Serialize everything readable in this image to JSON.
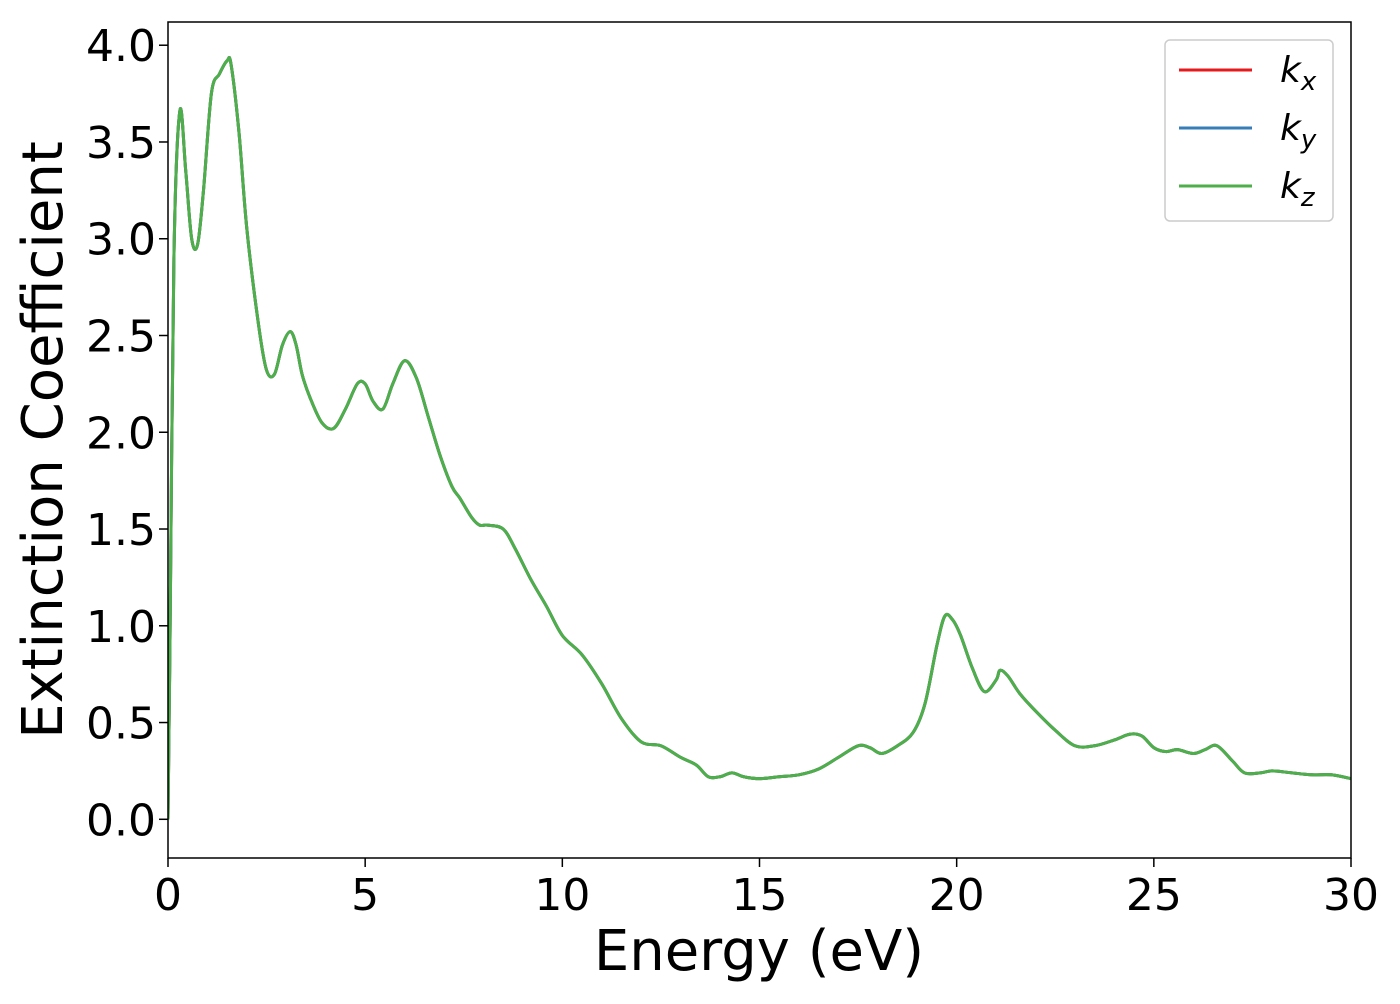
{
  "chart_data": {
    "type": "line",
    "title": "",
    "xlabel": "Energy (eV)",
    "ylabel": "Extinction Coefficient",
    "xlim": [
      0,
      30
    ],
    "ylim": [
      -0.2,
      4.12
    ],
    "xticks": [
      0,
      5,
      10,
      15,
      20,
      25,
      30
    ],
    "xtick_labels": [
      "0",
      "5",
      "10",
      "15",
      "20",
      "25",
      "30"
    ],
    "yticks": [
      0.0,
      0.5,
      1.0,
      1.5,
      2.0,
      2.5,
      3.0,
      3.5,
      4.0
    ],
    "ytick_labels": [
      "0.0",
      "0.5",
      "1.0",
      "1.5",
      "2.0",
      "2.5",
      "3.0",
      "3.5",
      "4.0"
    ],
    "grid": false,
    "legend_position": "top-right",
    "series": [
      {
        "name": "k",
        "subscript": "x",
        "color": "#e41a1c",
        "x": [
          0.0,
          0.05,
          0.15,
          0.3,
          0.45,
          0.6,
          0.75,
          0.9,
          1.1,
          1.3,
          1.5,
          1.6,
          1.8,
          2.0,
          2.3,
          2.5,
          2.7,
          2.9,
          3.1,
          3.25,
          3.4,
          3.6,
          3.9,
          4.2,
          4.5,
          4.8,
          5.0,
          5.2,
          5.45,
          5.7,
          6.0,
          6.3,
          6.6,
          6.9,
          7.2,
          7.4,
          7.7,
          7.9,
          8.1,
          8.5,
          8.8,
          9.2,
          9.6,
          10.0,
          10.5,
          11.0,
          11.5,
          12.0,
          12.5,
          13.0,
          13.4,
          13.7,
          14.0,
          14.3,
          14.6,
          15.0,
          15.5,
          16.0,
          16.5,
          17.0,
          17.5,
          17.8,
          18.1,
          18.5,
          18.9,
          19.2,
          19.5,
          19.7,
          19.9,
          20.1,
          20.4,
          20.7,
          21.0,
          21.1,
          21.3,
          21.6,
          22.0,
          22.5,
          23.0,
          23.5,
          24.0,
          24.4,
          24.7,
          25.0,
          25.3,
          25.6,
          26.0,
          26.3,
          26.6,
          27.0,
          27.3,
          27.7,
          28.0,
          28.5,
          29.0,
          29.5,
          30.0
        ],
        "y": [
          0.0,
          0.9,
          2.9,
          3.66,
          3.35,
          3.0,
          2.97,
          3.25,
          3.75,
          3.85,
          3.92,
          3.9,
          3.55,
          3.05,
          2.55,
          2.32,
          2.3,
          2.45,
          2.52,
          2.45,
          2.3,
          2.18,
          2.05,
          2.02,
          2.12,
          2.25,
          2.25,
          2.16,
          2.12,
          2.25,
          2.37,
          2.28,
          2.08,
          1.88,
          1.72,
          1.66,
          1.56,
          1.52,
          1.52,
          1.5,
          1.4,
          1.24,
          1.1,
          0.95,
          0.85,
          0.7,
          0.52,
          0.4,
          0.38,
          0.32,
          0.28,
          0.22,
          0.22,
          0.24,
          0.22,
          0.21,
          0.22,
          0.23,
          0.26,
          0.32,
          0.38,
          0.37,
          0.34,
          0.38,
          0.45,
          0.6,
          0.9,
          1.05,
          1.03,
          0.95,
          0.78,
          0.66,
          0.72,
          0.77,
          0.74,
          0.65,
          0.56,
          0.46,
          0.38,
          0.38,
          0.41,
          0.44,
          0.43,
          0.37,
          0.35,
          0.36,
          0.34,
          0.36,
          0.38,
          0.3,
          0.24,
          0.24,
          0.25,
          0.24,
          0.23,
          0.23,
          0.21
        ]
      },
      {
        "name": "k",
        "subscript": "y",
        "color": "#377eb8",
        "x": [
          0.0,
          0.05,
          0.15,
          0.3,
          0.45,
          0.6,
          0.75,
          0.9,
          1.1,
          1.3,
          1.5,
          1.6,
          1.8,
          2.0,
          2.3,
          2.5,
          2.7,
          2.9,
          3.1,
          3.25,
          3.4,
          3.6,
          3.9,
          4.2,
          4.5,
          4.8,
          5.0,
          5.2,
          5.45,
          5.7,
          6.0,
          6.3,
          6.6,
          6.9,
          7.2,
          7.4,
          7.7,
          7.9,
          8.1,
          8.5,
          8.8,
          9.2,
          9.6,
          10.0,
          10.5,
          11.0,
          11.5,
          12.0,
          12.5,
          13.0,
          13.4,
          13.7,
          14.0,
          14.3,
          14.6,
          15.0,
          15.5,
          16.0,
          16.5,
          17.0,
          17.5,
          17.8,
          18.1,
          18.5,
          18.9,
          19.2,
          19.5,
          19.7,
          19.9,
          20.1,
          20.4,
          20.7,
          21.0,
          21.1,
          21.3,
          21.6,
          22.0,
          22.5,
          23.0,
          23.5,
          24.0,
          24.4,
          24.7,
          25.0,
          25.3,
          25.6,
          26.0,
          26.3,
          26.6,
          27.0,
          27.3,
          27.7,
          28.0,
          28.5,
          29.0,
          29.5,
          30.0
        ],
        "y": [
          0.0,
          0.9,
          2.9,
          3.66,
          3.35,
          3.0,
          2.97,
          3.25,
          3.75,
          3.85,
          3.92,
          3.9,
          3.55,
          3.05,
          2.55,
          2.32,
          2.3,
          2.45,
          2.52,
          2.45,
          2.3,
          2.18,
          2.05,
          2.02,
          2.12,
          2.25,
          2.25,
          2.16,
          2.12,
          2.25,
          2.37,
          2.28,
          2.08,
          1.88,
          1.72,
          1.66,
          1.56,
          1.52,
          1.52,
          1.5,
          1.4,
          1.24,
          1.1,
          0.95,
          0.85,
          0.7,
          0.52,
          0.4,
          0.38,
          0.32,
          0.28,
          0.22,
          0.22,
          0.24,
          0.22,
          0.21,
          0.22,
          0.23,
          0.26,
          0.32,
          0.38,
          0.37,
          0.34,
          0.38,
          0.45,
          0.6,
          0.9,
          1.05,
          1.03,
          0.95,
          0.78,
          0.66,
          0.72,
          0.77,
          0.74,
          0.65,
          0.56,
          0.46,
          0.38,
          0.38,
          0.41,
          0.44,
          0.43,
          0.37,
          0.35,
          0.36,
          0.34,
          0.36,
          0.38,
          0.3,
          0.24,
          0.24,
          0.25,
          0.24,
          0.23,
          0.23,
          0.21
        ]
      },
      {
        "name": "k",
        "subscript": "z",
        "color": "#4daf4a",
        "x": [
          0.0,
          0.05,
          0.15,
          0.3,
          0.45,
          0.6,
          0.75,
          0.9,
          1.1,
          1.3,
          1.5,
          1.6,
          1.8,
          2.0,
          2.3,
          2.5,
          2.7,
          2.9,
          3.1,
          3.25,
          3.4,
          3.6,
          3.9,
          4.2,
          4.5,
          4.8,
          5.0,
          5.2,
          5.45,
          5.7,
          6.0,
          6.3,
          6.6,
          6.9,
          7.2,
          7.4,
          7.7,
          7.9,
          8.1,
          8.5,
          8.8,
          9.2,
          9.6,
          10.0,
          10.5,
          11.0,
          11.5,
          12.0,
          12.5,
          13.0,
          13.4,
          13.7,
          14.0,
          14.3,
          14.6,
          15.0,
          15.5,
          16.0,
          16.5,
          17.0,
          17.5,
          17.8,
          18.1,
          18.5,
          18.9,
          19.2,
          19.5,
          19.7,
          19.9,
          20.1,
          20.4,
          20.7,
          21.0,
          21.1,
          21.3,
          21.6,
          22.0,
          22.5,
          23.0,
          23.5,
          24.0,
          24.4,
          24.7,
          25.0,
          25.3,
          25.6,
          26.0,
          26.3,
          26.6,
          27.0,
          27.3,
          27.7,
          28.0,
          28.5,
          29.0,
          29.5,
          30.0
        ],
        "y": [
          0.0,
          0.9,
          2.9,
          3.66,
          3.35,
          3.0,
          2.97,
          3.25,
          3.75,
          3.85,
          3.92,
          3.9,
          3.55,
          3.05,
          2.55,
          2.32,
          2.3,
          2.45,
          2.52,
          2.45,
          2.3,
          2.18,
          2.05,
          2.02,
          2.12,
          2.25,
          2.25,
          2.16,
          2.12,
          2.25,
          2.37,
          2.28,
          2.08,
          1.88,
          1.72,
          1.66,
          1.56,
          1.52,
          1.52,
          1.5,
          1.4,
          1.24,
          1.1,
          0.95,
          0.85,
          0.7,
          0.52,
          0.4,
          0.38,
          0.32,
          0.28,
          0.22,
          0.22,
          0.24,
          0.22,
          0.21,
          0.22,
          0.23,
          0.26,
          0.32,
          0.38,
          0.37,
          0.34,
          0.38,
          0.45,
          0.6,
          0.9,
          1.05,
          1.03,
          0.95,
          0.78,
          0.66,
          0.72,
          0.77,
          0.74,
          0.65,
          0.56,
          0.46,
          0.38,
          0.38,
          0.41,
          0.44,
          0.43,
          0.37,
          0.35,
          0.36,
          0.34,
          0.36,
          0.38,
          0.3,
          0.24,
          0.24,
          0.25,
          0.24,
          0.23,
          0.23,
          0.21
        ]
      }
    ]
  }
}
